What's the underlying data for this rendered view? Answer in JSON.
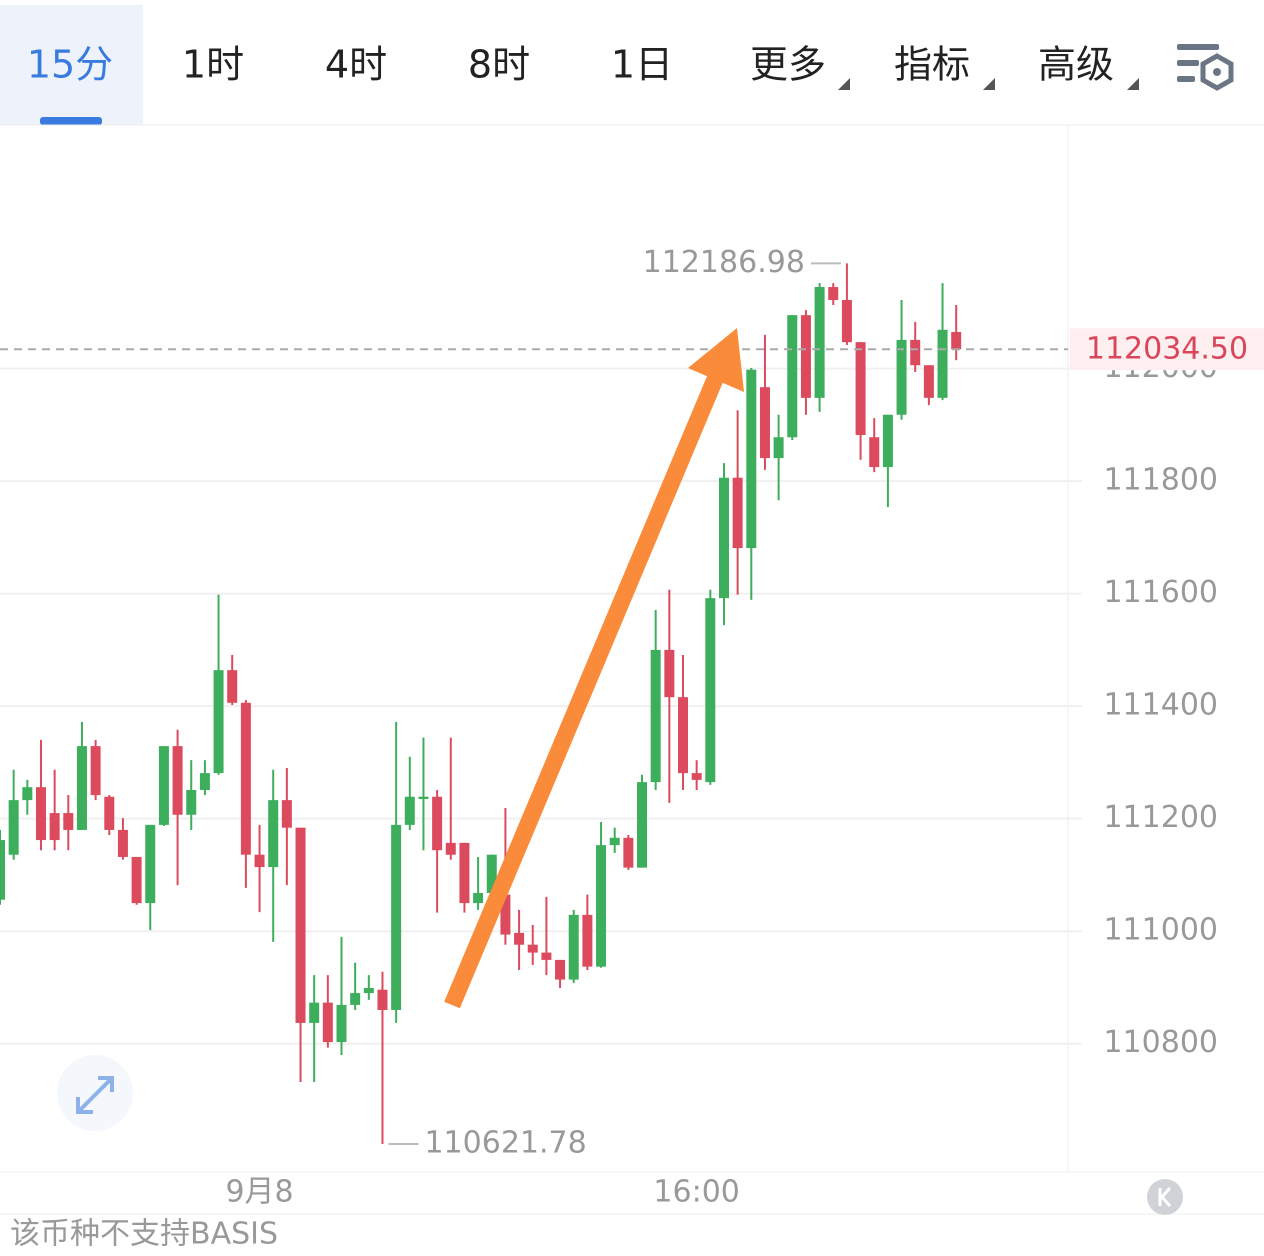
{
  "tabs": [
    "15分",
    "1时",
    "4时",
    "8时",
    "1日",
    "更多",
    "指标",
    "高级"
  ],
  "footer": "该币种不支持BASIS",
  "chart_data": {
    "type": "candlestick",
    "categories": [
      null,
      null,
      null,
      null,
      null,
      null,
      null,
      null,
      null,
      null,
      null,
      null,
      null,
      null,
      null,
      null,
      null,
      null,
      null,
      "9月8",
      null,
      null,
      null,
      null,
      null,
      null,
      null,
      null,
      null,
      null,
      null,
      null,
      null,
      null,
      null,
      null,
      null,
      null,
      null,
      null,
      null,
      null,
      null,
      null,
      null,
      null,
      null,
      null,
      null,
      null,
      null,
      "16:00",
      null,
      null,
      null,
      null,
      null,
      null,
      null,
      null,
      null,
      null,
      null,
      null,
      null,
      null,
      null,
      null,
      null,
      null,
      null
    ],
    "open": [
      111056,
      111136,
      111233,
      111256,
      111210,
      111210,
      111180,
      111329,
      111239,
      111180,
      111132,
      111050,
      111189,
      111329,
      111207,
      111251,
      111281,
      111464,
      111406,
      111136,
      111114,
      111233,
      111184,
      110837,
      110873,
      110803,
      110869,
      110890,
      110896,
      110860,
      111189,
      111235,
      111239,
      111157,
      111157,
      111050,
      111068,
      111065,
      110997,
      110976,
      110962,
      110949,
      110914,
      111029,
      110937,
      111153,
      111166,
      111113,
      111265,
      111500,
      111416,
      111281,
      111265,
      111592,
      111806,
      111681,
      111967,
      111841,
      111878,
      112095,
      111948,
      112145,
      112122,
      112047,
      111878,
      111825,
      111918,
      112051,
      112006,
      111948,
      112065
    ],
    "high": [
      111180,
      111287,
      111269,
      111340,
      111287,
      111242,
      111372,
      111340,
      111242,
      111201,
      111132,
      111189,
      111329,
      111358,
      111304,
      111304,
      111598,
      111491,
      111411,
      111189,
      111287,
      111290,
      111184,
      110922,
      110922,
      110990,
      110944,
      110922,
      110928,
      111372,
      111310,
      111344,
      111251,
      111344,
      111157,
      111132,
      111136,
      111219,
      111038,
      111011,
      111061,
      110949,
      111038,
      111065,
      111194,
      111184,
      111171,
      111278,
      111571,
      111607,
      111491,
      111304,
      111607,
      111832,
      111926,
      112001,
      112060,
      111918,
      112095,
      112104,
      112152,
      112152,
      112186.98,
      112047,
      111912,
      111918,
      112122,
      112083,
      112006,
      112152,
      112113
    ],
    "low": [
      111047,
      111127,
      111207,
      111144,
      111144,
      111144,
      111180,
      111233,
      111171,
      111127,
      111047,
      111002,
      111187,
      111082,
      111180,
      111242,
      111278,
      111402,
      111077,
      111034,
      110981,
      111082,
      110732,
      110732,
      110793,
      110780,
      110860,
      110878,
      110621.78,
      110837,
      111180,
      111144,
      111033,
      111127,
      111033,
      111038,
      111056,
      110976,
      110931,
      110940,
      110922,
      110899,
      110908,
      110931,
      110935,
      111139,
      111109,
      111113,
      111251,
      111228,
      111251,
      111251,
      111260,
      111544,
      111598,
      111589,
      111820,
      111766,
      111873,
      111918,
      111923,
      112113,
      112042,
      111838,
      111816,
      111754,
      111909,
      111994,
      111935,
      111944,
      112015
    ],
    "close": [
      111162,
      111233,
      111256,
      111162,
      111162,
      111180,
      111329,
      111242,
      111180,
      111132,
      111050,
      111189,
      111329,
      111207,
      111251,
      111281,
      111464,
      111406,
      111136,
      111114,
      111233,
      111184,
      110837,
      110873,
      110803,
      110869,
      110890,
      110899,
      110860,
      111189,
      111239,
      111239,
      111144,
      111136,
      111050,
      111068,
      111136,
      110994,
      110976,
      110962,
      110949,
      110914,
      111029,
      110937,
      111153,
      111166,
      111113,
      111265,
      111500,
      111416,
      111281,
      111269,
      111592,
      111806,
      111681,
      111998,
      111841,
      111878,
      112095,
      111948,
      112145,
      112122,
      112047,
      111882,
      111825,
      111918,
      112051,
      112006,
      111948,
      112069,
      112034.5
    ],
    "up_color": "#3dae5c",
    "down_color": "#dc4b5d",
    "ylim": [
      110572,
      112433
    ],
    "yticks": [
      110800,
      111000,
      111200,
      111400,
      111600,
      111800,
      112000
    ],
    "grid": true,
    "last_price": {
      "value": 112034.5,
      "label": "112034.50"
    }
  }
}
